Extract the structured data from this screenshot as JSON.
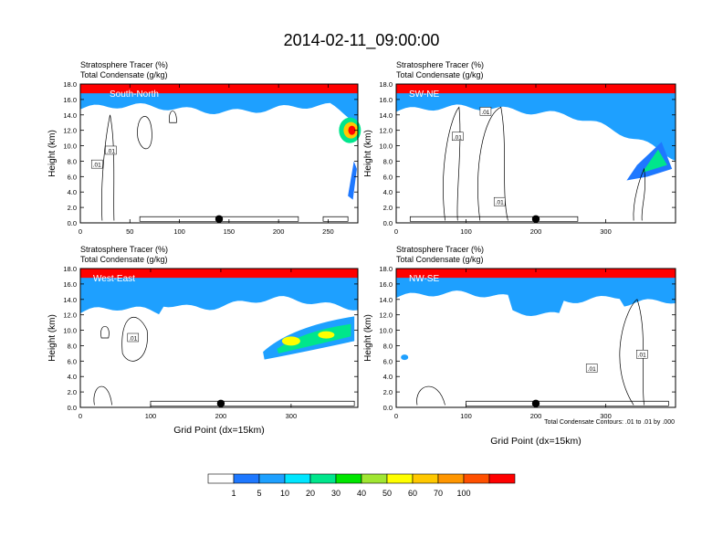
{
  "title": "2014-02-11_09:00:00",
  "chart_data": [
    {
      "type": "heatmap",
      "panel": "top-left",
      "left_label_1": "Stratosphere Tracer   (%)",
      "left_label_2": "Total Condensate   (g/kg)",
      "cross_section": "South-North",
      "ylabel": "Height (km)",
      "xlabel": "",
      "xlim": [
        0,
        280
      ],
      "ylim": [
        0,
        18
      ],
      "x_ticks": [
        0,
        50,
        100,
        150,
        200,
        250
      ],
      "y_ticks": [
        0.0,
        2.0,
        4.0,
        6.0,
        8.0,
        10.0,
        12.0,
        14.0,
        16.0,
        18.0
      ],
      "marker_x": 140,
      "contour_labels": [
        ".01",
        ".01"
      ]
    },
    {
      "type": "heatmap",
      "panel": "top-right",
      "left_label_1": "Stratosphere Tracer   (%)",
      "left_label_2": "Total Condensate   (g/kg)",
      "cross_section": "SW-NE",
      "ylabel": "Height (km)",
      "xlabel": "",
      "xlim": [
        0,
        400
      ],
      "ylim": [
        0,
        18
      ],
      "x_ticks": [
        0,
        100,
        200,
        300
      ],
      "y_ticks": [
        0.0,
        2.0,
        4.0,
        6.0,
        8.0,
        10.0,
        12.0,
        14.0,
        16.0,
        18.0
      ],
      "marker_x": 200,
      "contour_labels": [
        ".01",
        ".01",
        ".01"
      ]
    },
    {
      "type": "heatmap",
      "panel": "bottom-left",
      "left_label_1": "Stratosphere Tracer   (%)",
      "left_label_2": "Total Condensate   (g/kg)",
      "cross_section": "West-East",
      "ylabel": "Height (km)",
      "xlabel": "Grid Point (dx=15km)",
      "xlim": [
        0,
        395
      ],
      "ylim": [
        0,
        18
      ],
      "x_ticks": [
        0,
        100,
        200,
        300
      ],
      "y_ticks": [
        0.0,
        2.0,
        4.0,
        6.0,
        8.0,
        10.0,
        12.0,
        14.0,
        16.0,
        18.0
      ],
      "marker_x": 200,
      "contour_labels": [
        ".01"
      ]
    },
    {
      "type": "heatmap",
      "panel": "bottom-right",
      "left_label_1": "Stratosphere Tracer   (%)",
      "left_label_2": "Total Condensate   (g/kg)",
      "cross_section": "NW-SE",
      "ylabel": "Height (km)",
      "xlabel": "Grid Point (dx=15km)",
      "xlim": [
        0,
        400
      ],
      "ylim": [
        0,
        18
      ],
      "x_ticks": [
        0,
        100,
        200,
        300
      ],
      "y_ticks": [
        0.0,
        2.0,
        4.0,
        6.0,
        8.0,
        10.0,
        12.0,
        14.0,
        16.0,
        18.0
      ],
      "marker_x": 200,
      "contour_labels": [
        ".01",
        ".01"
      ],
      "contour_info": "Total Condensate Contours: .01 to .01 by .000"
    }
  ],
  "colorbar": {
    "labels": [
      "1",
      "5",
      "10",
      "20",
      "30",
      "40",
      "50",
      "60",
      "70",
      "100"
    ],
    "colors": [
      "#ffffff",
      "#1e78ff",
      "#1ea0ff",
      "#00e6ff",
      "#00e68c",
      "#00e600",
      "#a0e632",
      "#ffff00",
      "#ffc800",
      "#ff9600",
      "#ff5000",
      "#ff0000"
    ]
  }
}
